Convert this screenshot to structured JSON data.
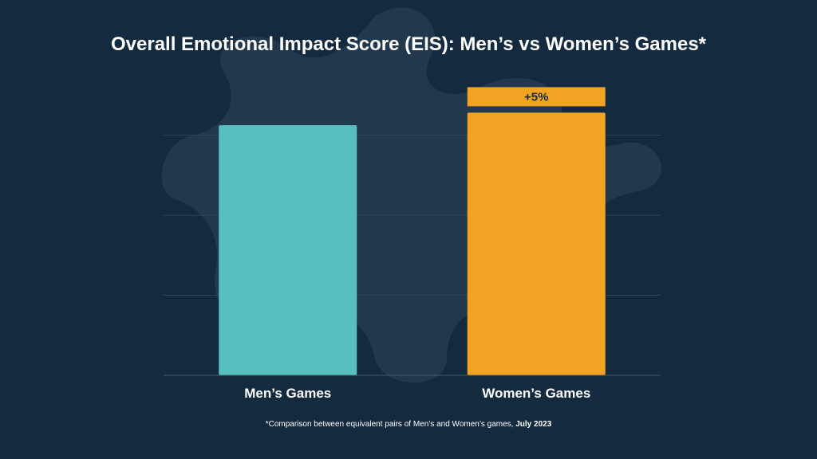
{
  "title": "Overall Emotional Impact Score (EIS): Men’s vs Women’s Games*",
  "footnote": {
    "text": "*Comparison between equivalent pairs of Men’s and Women’s games, ",
    "date": "July 2023"
  },
  "colors": {
    "background": "#142a3e",
    "decoration": "#243b4f",
    "gridline": "#2f4558",
    "baseline": "#4a5a67",
    "mens": "#58bfc1",
    "womens": "#f2a324",
    "label_text": "#142a3e",
    "text": "#ffffff"
  },
  "chart_data": {
    "type": "bar",
    "categories": [
      "Men’s Games",
      "Women’s Games"
    ],
    "values": [
      100,
      105
    ],
    "ylim": [
      0,
      115
    ],
    "grid": true,
    "annotations": [
      {
        "category": "Women’s Games",
        "text": "+5%"
      }
    ],
    "xlabel": "",
    "ylabel": ""
  }
}
